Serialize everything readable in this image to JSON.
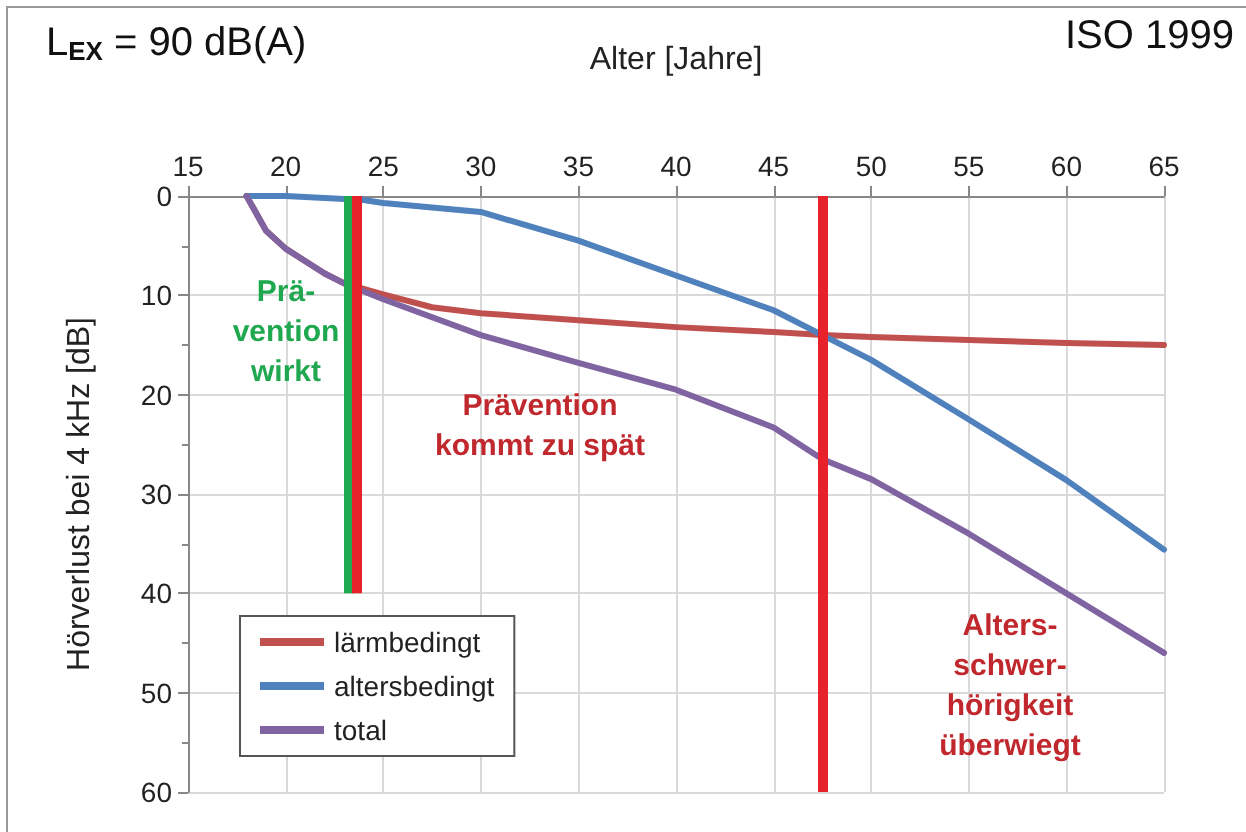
{
  "chart_data": {
    "type": "line",
    "title": "L$_{EX}$ = 90 dB(A)",
    "xlabel": "Alter [Jahre]",
    "ylabel": "Hörverlust bei 4 kHz [dB]",
    "xlim": [
      15,
      65
    ],
    "xticks": [
      15,
      20,
      25,
      30,
      35,
      40,
      45,
      50,
      55,
      60,
      65
    ],
    "ylim": [
      60,
      0
    ],
    "yticks": [
      0,
      10,
      20,
      30,
      40,
      50,
      60
    ],
    "grid": true,
    "legend": "bottom left",
    "marker": "none",
    "line_style": "solid",
    "series": [
      {
        "name": "lärmbedingt",
        "color": "#c0504d",
        "x": [
          18,
          19,
          20,
          22,
          23,
          25,
          27.5,
          30,
          35,
          40,
          45,
          47.5,
          50,
          55,
          60,
          65
        ],
        "values": [
          0,
          3.5,
          5.3,
          7.8,
          8.8,
          9.9,
          11.2,
          11.8,
          12.5,
          13.2,
          13.7,
          14,
          14.2,
          14.5,
          14.8,
          15
        ]
      },
      {
        "name": "altersbedingt",
        "color": "#4f81bd",
        "x": [
          18,
          20,
          22,
          24,
          25,
          30,
          35,
          40,
          45,
          47.5,
          50,
          55,
          60,
          65
        ],
        "values": [
          0,
          0,
          0.2,
          0.4,
          0.7,
          1.6,
          4.5,
          8,
          11.5,
          14,
          16.5,
          22.5,
          28.6,
          35.6
        ]
      },
      {
        "name": "total",
        "color": "#8064a2",
        "x": [
          18,
          19,
          20,
          22,
          23,
          25,
          30,
          35,
          40,
          45,
          47.5,
          50,
          55,
          60,
          65
        ],
        "values": [
          0,
          3.5,
          5.3,
          7.8,
          8.8,
          10.4,
          14,
          16.8,
          19.5,
          23.3,
          26.5,
          28.5,
          34,
          40,
          46
        ]
      }
    ],
    "ref_lines": [
      {
        "axis": "x",
        "value": 23.2,
        "color": "#1fa84f"
      },
      {
        "axis": "x",
        "value": 23.6,
        "color": "#e8222a"
      },
      {
        "axis": "x",
        "value": 47.5,
        "color": "#e8222a"
      }
    ],
    "annotations": [
      "ISO 1999",
      "Prä-\nvention\nwirkt",
      "Prävention\nkommt zu spät",
      "Alters-\nschwer-\nhörigkeit\nüberwiegt"
    ]
  }
}
